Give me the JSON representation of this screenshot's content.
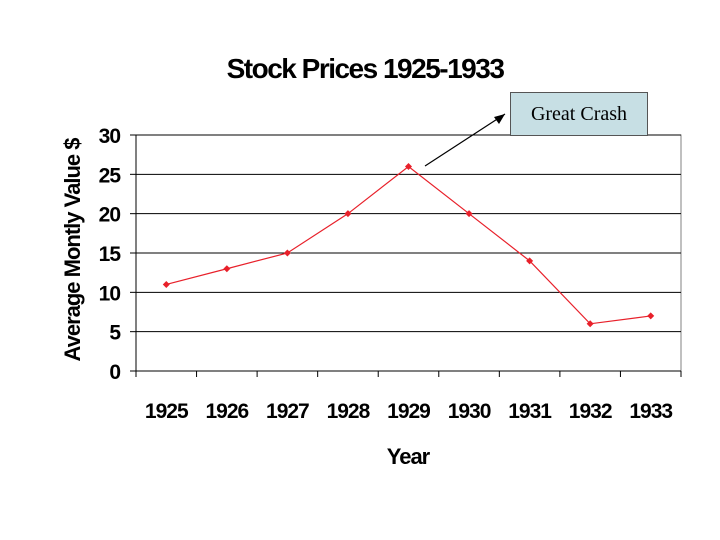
{
  "chart_data": {
    "type": "line",
    "title": "Stock Prices 1925-1933",
    "xlabel": "Year",
    "ylabel": "Average Montly Value $",
    "categories": [
      "1925",
      "1926",
      "1927",
      "1928",
      "1929",
      "1930",
      "1931",
      "1932",
      "1933"
    ],
    "series": [
      {
        "values": [
          11,
          13,
          15,
          20,
          26,
          20,
          14,
          6,
          7
        ]
      }
    ],
    "yticks": [
      "0",
      "5",
      "10",
      "15",
      "20",
      "25",
      "30"
    ],
    "ylim": [
      0,
      30
    ],
    "grid": "horizontal",
    "legend": "none",
    "line_color": "#e8202a",
    "annotation": {
      "text": "Great Crash",
      "points_to": "1929"
    }
  }
}
